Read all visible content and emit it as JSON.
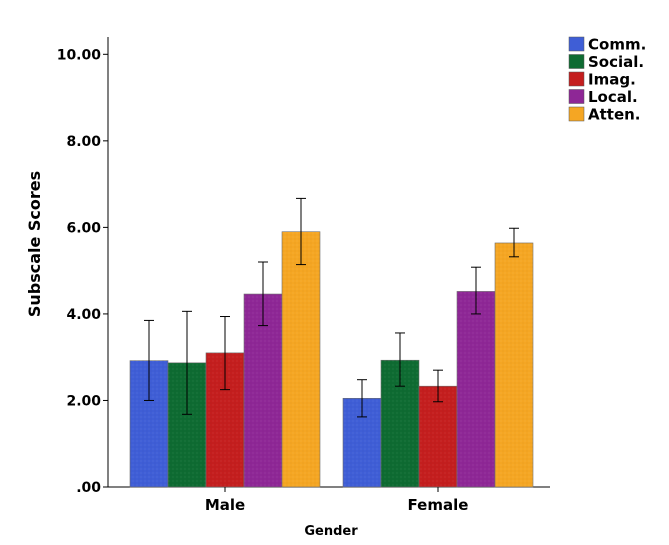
{
  "chart_data": {
    "type": "bar",
    "title": "",
    "xlabel": "Gender",
    "ylabel": "Subscale Scores",
    "ylim": [
      0,
      10.4
    ],
    "yticks": [
      0,
      2,
      4,
      6,
      8,
      10
    ],
    "ytick_labels": [
      ".00",
      "2.00",
      "4.00",
      "6.00",
      "8.00",
      "10.00"
    ],
    "categories": [
      "Male",
      "Female"
    ],
    "legend_position": "top-right",
    "series": [
      {
        "name": "Comm.",
        "color": "#3f5ed6",
        "values": [
          2.92,
          2.05
        ],
        "err_low": [
          2.0,
          1.62
        ],
        "err_high": [
          3.85,
          2.48
        ]
      },
      {
        "name": "Social.",
        "color": "#0e6b32",
        "values": [
          2.87,
          2.93
        ],
        "err_low": [
          1.68,
          2.33
        ],
        "err_high": [
          4.06,
          3.56
        ]
      },
      {
        "name": "Imag.",
        "color": "#c41e1e",
        "values": [
          3.1,
          2.33
        ],
        "err_low": [
          2.25,
          1.97
        ],
        "err_high": [
          3.94,
          2.7
        ]
      },
      {
        "name": "Local.",
        "color": "#8e2796",
        "values": [
          4.46,
          4.52
        ],
        "err_low": [
          3.73,
          4.0
        ],
        "err_high": [
          5.2,
          5.08
        ]
      },
      {
        "name": "Atten.",
        "color": "#f5a623",
        "values": [
          5.9,
          5.64
        ],
        "err_low": [
          5.14,
          5.32
        ],
        "err_high": [
          6.67,
          5.98
        ]
      }
    ]
  }
}
